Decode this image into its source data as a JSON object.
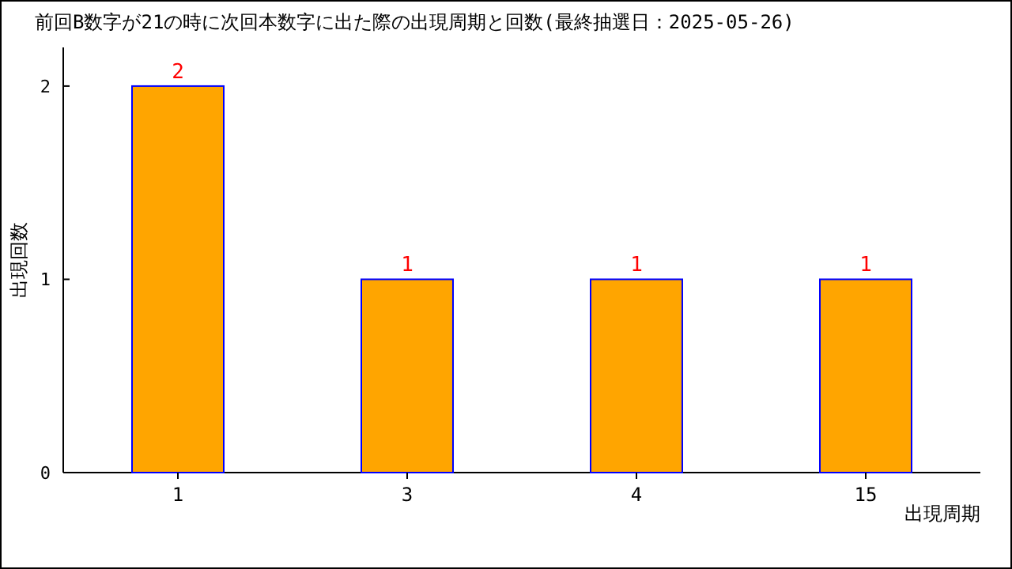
{
  "chart_data": {
    "type": "bar",
    "title": "前回B数字が21の時に次回本数字に出た際の出現周期と回数(最終抽選日：2025-05-26)",
    "xlabel": "出現周期",
    "ylabel": "出現回数",
    "categories": [
      "1",
      "3",
      "4",
      "15"
    ],
    "values": [
      2,
      1,
      1,
      1
    ],
    "color": "#ffa500",
    "ylim": [
      0,
      2.2
    ],
    "yticks": [
      0,
      1,
      2
    ],
    "data_labels": true,
    "grid": false
  }
}
